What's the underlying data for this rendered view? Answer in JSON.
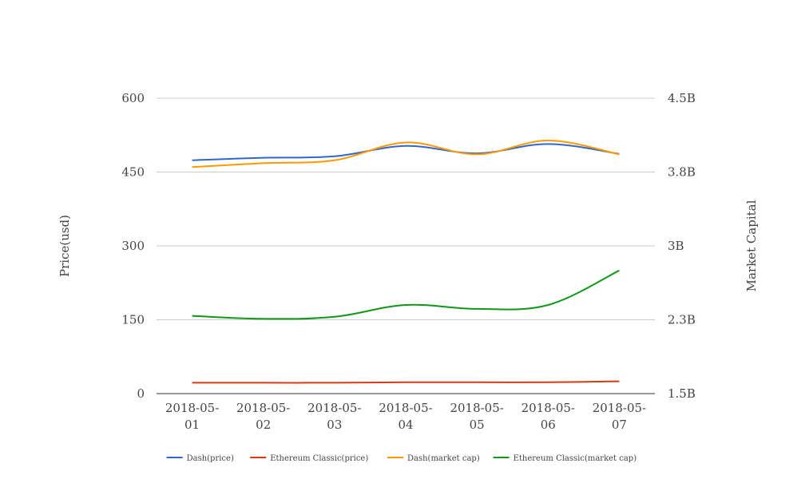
{
  "chart_data": {
    "type": "line",
    "title": "",
    "x": [
      "2018-05-01",
      "2018-05-02",
      "2018-05-03",
      "2018-05-04",
      "2018-05-05",
      "2018-05-06",
      "2018-05-07"
    ],
    "x_tick_lines": [
      [
        "2018-05-",
        "01"
      ],
      [
        "2018-05-",
        "02"
      ],
      [
        "2018-05-",
        "03"
      ],
      [
        "2018-05-",
        "04"
      ],
      [
        "2018-05-",
        "05"
      ],
      [
        "2018-05-",
        "06"
      ],
      [
        "2018-05-",
        "07"
      ]
    ],
    "ylabel_left": "Price(usd)",
    "ylabel_right": "Market Capital",
    "ylim_left": [
      0,
      600
    ],
    "ylim_right": [
      1.5,
      4.5
    ],
    "yticks_left": [
      "0",
      "150",
      "300",
      "450",
      "600"
    ],
    "yticks_right": [
      "1.5B",
      "2.3B",
      "3B",
      "3.8B",
      "4.5B"
    ],
    "right_axis_unit": "B (billions USD)",
    "grid": true,
    "legend_position": "bottom",
    "series": [
      {
        "name": "Dash(price)",
        "axis": "left",
        "color": "#3366CC",
        "values": [
          474,
          479,
          482,
          503,
          488,
          507,
          487
        ]
      },
      {
        "name": "Ethereum Classic(price)",
        "axis": "left",
        "color": "#DC3912",
        "values": [
          22,
          22,
          22,
          23,
          23,
          23,
          25
        ]
      },
      {
        "name": "Dash(market cap)",
        "axis": "right",
        "color": "#FF9900",
        "values": [
          3.8,
          3.84,
          3.87,
          4.05,
          3.93,
          4.07,
          3.93
        ]
      },
      {
        "name": "Ethereum Classic(market cap)",
        "axis": "right",
        "color": "#109618",
        "values": [
          2.29,
          2.26,
          2.28,
          2.4,
          2.36,
          2.4,
          2.75
        ]
      }
    ]
  }
}
